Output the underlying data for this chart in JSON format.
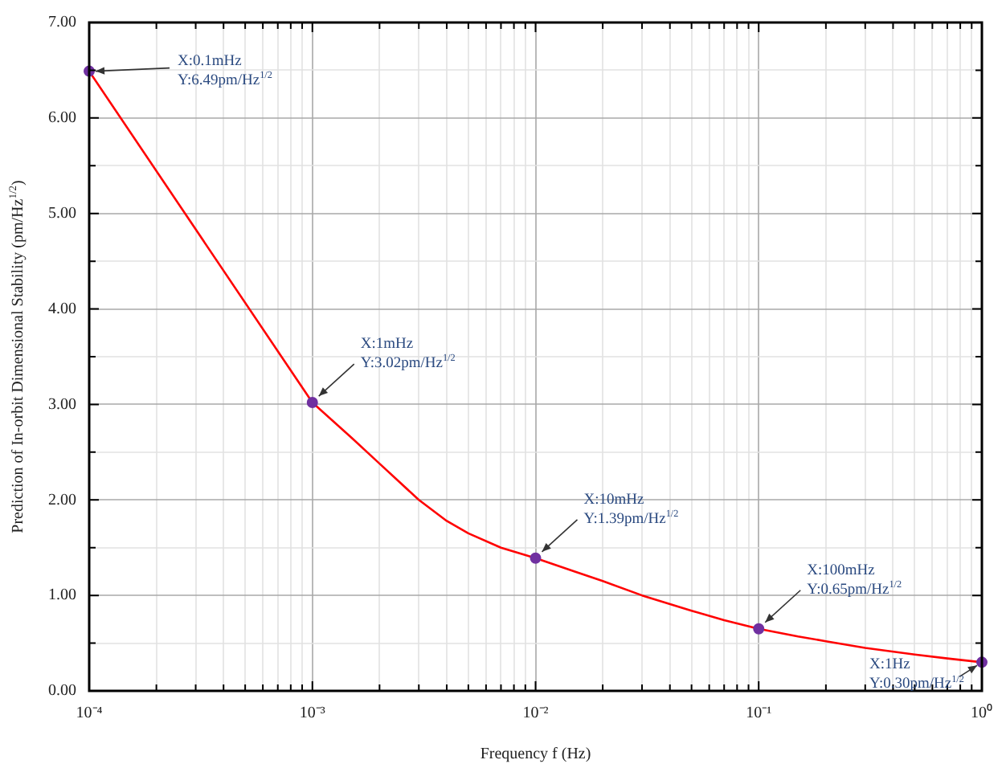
{
  "chart_data": {
    "type": "line",
    "xlabel": "Frequency f (Hz)",
    "ylabel": "Prediction of In-orbit Dimensional Stability (pm/Hz$^{1/2}$)",
    "log": "x",
    "xlim": [
      0.0001,
      1
    ],
    "xticks": [
      {
        "value": 0.0001,
        "label": "10⁻⁴"
      },
      {
        "value": 0.0002,
        "label": null
      },
      {
        "value": 0.0003,
        "label": null
      },
      {
        "value": 0.0004,
        "label": null
      },
      {
        "value": 0.0005,
        "label": null
      },
      {
        "value": 0.0006,
        "label": null
      },
      {
        "value": 0.0007,
        "label": null
      },
      {
        "value": 0.0008,
        "label": null
      },
      {
        "value": 0.0009,
        "label": null
      },
      {
        "value": 0.001,
        "label": "10⁻³"
      },
      {
        "value": 0.002,
        "label": null
      },
      {
        "value": 0.003,
        "label": null
      },
      {
        "value": 0.004,
        "label": null
      },
      {
        "value": 0.005,
        "label": null
      },
      {
        "value": 0.006,
        "label": null
      },
      {
        "value": 0.007,
        "label": null
      },
      {
        "value": 0.008,
        "label": null
      },
      {
        "value": 0.009,
        "label": null
      },
      {
        "value": 0.01,
        "label": "10⁻²"
      },
      {
        "value": 0.02,
        "label": null
      },
      {
        "value": 0.03,
        "label": null
      },
      {
        "value": 0.04,
        "label": null
      },
      {
        "value": 0.05,
        "label": null
      },
      {
        "value": 0.06,
        "label": null
      },
      {
        "value": 0.07,
        "label": null
      },
      {
        "value": 0.08,
        "label": null
      },
      {
        "value": 0.09,
        "label": null
      },
      {
        "value": 0.1,
        "label": "10⁻¹"
      },
      {
        "value": 0.2,
        "label": null
      },
      {
        "value": 0.3,
        "label": null
      },
      {
        "value": 0.4,
        "label": null
      },
      {
        "value": 0.5,
        "label": null
      },
      {
        "value": 0.6,
        "label": null
      },
      {
        "value": 0.7,
        "label": null
      },
      {
        "value": 0.8,
        "label": null
      },
      {
        "value": 0.9,
        "label": null
      },
      {
        "value": 1,
        "label": "10⁰"
      }
    ],
    "ylim": [
      0,
      7
    ],
    "yticks": [
      {
        "value": 0,
        "label": "0.00"
      },
      {
        "value": 0.5,
        "label": null
      },
      {
        "value": 1,
        "label": "1.00"
      },
      {
        "value": 1.5,
        "label": null
      },
      {
        "value": 2,
        "label": "2.00"
      },
      {
        "value": 2.5,
        "label": null
      },
      {
        "value": 3,
        "label": "3.00"
      },
      {
        "value": 3.5,
        "label": null
      },
      {
        "value": 4,
        "label": "4.00"
      },
      {
        "value": 4.5,
        "label": null
      },
      {
        "value": 5,
        "label": "5.00"
      },
      {
        "value": 5.5,
        "label": null
      },
      {
        "value": 6,
        "label": "6.00"
      },
      {
        "value": 6.5,
        "label": null
      },
      {
        "value": 7,
        "label": "7.00"
      }
    ],
    "grid": true,
    "legend": false,
    "series": [
      {
        "type": "line",
        "color": "#ff0000",
        "marker": "none",
        "x": [
          0.0001,
          0.001,
          0.0015,
          0.002,
          0.003,
          0.004,
          0.005,
          0.007,
          0.01,
          0.015,
          0.02,
          0.03,
          0.05,
          0.07,
          0.1,
          0.15,
          0.2,
          0.3,
          0.5,
          0.7,
          1
        ],
        "values": [
          6.49,
          3.02,
          2.65,
          2.38,
          2.0,
          1.78,
          1.65,
          1.5,
          1.39,
          1.25,
          1.15,
          1.0,
          0.84,
          0.74,
          0.65,
          0.57,
          0.52,
          0.45,
          0.38,
          0.34,
          0.3
        ]
      },
      {
        "type": "scatter",
        "color": "#7030a0",
        "marker": "circle",
        "x": [
          0.0001,
          0.001,
          0.01,
          0.1,
          1
        ],
        "values": [
          6.49,
          3.02,
          1.39,
          0.65,
          0.3
        ]
      }
    ],
    "annotations": [
      {
        "text": "X:0.1mHz\nY:6.49pm/Hz$^{1/2}$",
        "x": 0.0001,
        "y": 6.49
      },
      {
        "text": "X:1mHz\nY:3.02pm/Hz$^{1/2}$",
        "x": 0.001,
        "y": 3.02
      },
      {
        "text": "X:10mHz\nY:1.39pm/Hz$^{1/2}$",
        "x": 0.01,
        "y": 1.39
      },
      {
        "text": "X:100mHz\nY:0.65pm/Hz$^{1/2}$",
        "x": 0.1,
        "y": 0.65
      },
      {
        "text": "X:1Hz\nY:0.30pm/Hz$^{1/2}$",
        "x": 1,
        "y": 0.3
      }
    ]
  }
}
